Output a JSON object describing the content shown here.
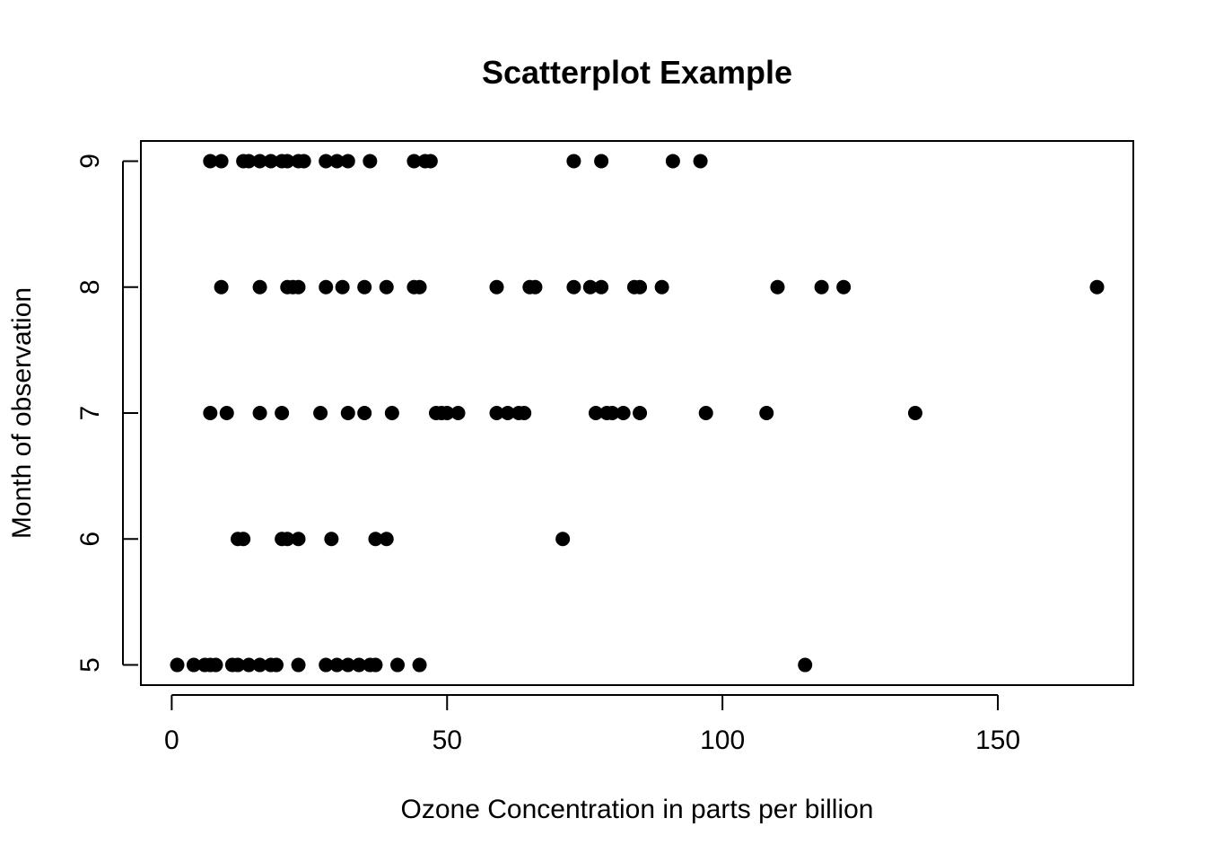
{
  "chart_data": {
    "type": "scatter",
    "title": "Scatterplot Example",
    "xlabel": "Ozone Concentration in parts per billion",
    "ylabel": "Month of observation",
    "xlim": [
      -5.6,
      174.6
    ],
    "ylim": [
      4.84,
      9.16
    ],
    "xticks": [
      0,
      50,
      100,
      150
    ],
    "yticks": [
      5,
      6,
      7,
      8,
      9
    ],
    "grid": false,
    "point_color": "#000000",
    "series": [
      {
        "points": [
          [
            1,
            5
          ],
          [
            4,
            5
          ],
          [
            6,
            5
          ],
          [
            7,
            5
          ],
          [
            8,
            5
          ],
          [
            11,
            5
          ],
          [
            12,
            5
          ],
          [
            14,
            5
          ],
          [
            16,
            5
          ],
          [
            18,
            5
          ],
          [
            19,
            5
          ],
          [
            23,
            5
          ],
          [
            28,
            5
          ],
          [
            30,
            5
          ],
          [
            32,
            5
          ],
          [
            34,
            5
          ],
          [
            36,
            5
          ],
          [
            37,
            5
          ],
          [
            41,
            5
          ],
          [
            45,
            5
          ],
          [
            115,
            5
          ],
          [
            12,
            6
          ],
          [
            13,
            6
          ],
          [
            20,
            6
          ],
          [
            21,
            6
          ],
          [
            23,
            6
          ],
          [
            29,
            6
          ],
          [
            37,
            6
          ],
          [
            39,
            6
          ],
          [
            71,
            6
          ],
          [
            7,
            7
          ],
          [
            10,
            7
          ],
          [
            16,
            7
          ],
          [
            20,
            7
          ],
          [
            27,
            7
          ],
          [
            32,
            7
          ],
          [
            35,
            7
          ],
          [
            40,
            7
          ],
          [
            48,
            7
          ],
          [
            49,
            7
          ],
          [
            50,
            7
          ],
          [
            52,
            7
          ],
          [
            59,
            7
          ],
          [
            61,
            7
          ],
          [
            63,
            7
          ],
          [
            64,
            7
          ],
          [
            77,
            7
          ],
          [
            79,
            7
          ],
          [
            80,
            7
          ],
          [
            82,
            7
          ],
          [
            85,
            7
          ],
          [
            97,
            7
          ],
          [
            108,
            7
          ],
          [
            135,
            7
          ],
          [
            9,
            8
          ],
          [
            16,
            8
          ],
          [
            21,
            8
          ],
          [
            22,
            8
          ],
          [
            23,
            8
          ],
          [
            28,
            8
          ],
          [
            31,
            8
          ],
          [
            35,
            8
          ],
          [
            39,
            8
          ],
          [
            44,
            8
          ],
          [
            45,
            8
          ],
          [
            59,
            8
          ],
          [
            65,
            8
          ],
          [
            66,
            8
          ],
          [
            73,
            8
          ],
          [
            76,
            8
          ],
          [
            78,
            8
          ],
          [
            84,
            8
          ],
          [
            85,
            8
          ],
          [
            89,
            8
          ],
          [
            110,
            8
          ],
          [
            118,
            8
          ],
          [
            122,
            8
          ],
          [
            168,
            8
          ],
          [
            7,
            9
          ],
          [
            9,
            9
          ],
          [
            13,
            9
          ],
          [
            14,
            9
          ],
          [
            16,
            9
          ],
          [
            18,
            9
          ],
          [
            20,
            9
          ],
          [
            21,
            9
          ],
          [
            23,
            9
          ],
          [
            24,
            9
          ],
          [
            28,
            9
          ],
          [
            30,
            9
          ],
          [
            32,
            9
          ],
          [
            36,
            9
          ],
          [
            44,
            9
          ],
          [
            46,
            9
          ],
          [
            47,
            9
          ],
          [
            73,
            9
          ],
          [
            78,
            9
          ],
          [
            91,
            9
          ],
          [
            96,
            9
          ]
        ]
      }
    ]
  }
}
